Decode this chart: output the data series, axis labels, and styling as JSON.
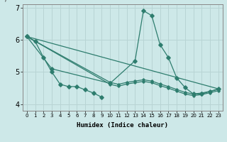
{
  "xlabel": "Humidex (Indice chaleur)",
  "bg_color": "#cde8e8",
  "line_color": "#2e7d6e",
  "grid_color": "#b8d4d4",
  "xlim": [
    -0.5,
    23.5
  ],
  "ylim": [
    3.8,
    7.1
  ],
  "yticks": [
    4,
    5,
    6,
    7
  ],
  "xtick_labels": [
    "0",
    "1",
    "2",
    "3",
    "4",
    "5",
    "6",
    "7",
    "8",
    "9",
    "10",
    "11",
    "12",
    "13",
    "14",
    "15",
    "16",
    "17",
    "18",
    "19",
    "20",
    "21",
    "22",
    "23"
  ],
  "line_jagged": {
    "x": [
      0,
      1,
      2,
      3,
      4,
      5,
      6,
      7,
      8,
      9
    ],
    "y": [
      6.1,
      5.95,
      5.45,
      5.0,
      4.62,
      4.55,
      4.55,
      4.45,
      4.35,
      4.22
    ]
  },
  "line_peak": {
    "x": [
      0,
      3,
      10,
      13,
      14,
      15,
      16,
      17,
      18,
      19,
      20,
      21,
      22,
      23
    ],
    "y": [
      6.1,
      5.1,
      4.65,
      5.35,
      6.9,
      6.75,
      5.85,
      5.45,
      4.82,
      4.52,
      4.32,
      4.32,
      4.4,
      4.48
    ]
  },
  "line_straight1": {
    "x": [
      0,
      23
    ],
    "y": [
      6.1,
      4.48
    ]
  },
  "line_straight2": {
    "x": [
      0,
      10,
      11,
      12,
      13,
      14,
      15,
      16,
      17,
      18,
      19,
      20,
      21,
      22,
      23
    ],
    "y": [
      6.1,
      4.68,
      4.62,
      4.68,
      4.72,
      4.76,
      4.72,
      4.63,
      4.55,
      4.46,
      4.37,
      4.32,
      4.35,
      4.4,
      4.46
    ]
  },
  "line_straight3": {
    "x": [
      0,
      10,
      11,
      12,
      13,
      14,
      15,
      16,
      17,
      18,
      19,
      20,
      21,
      22,
      23
    ],
    "y": [
      6.1,
      4.62,
      4.56,
      4.63,
      4.67,
      4.71,
      4.67,
      4.58,
      4.5,
      4.41,
      4.32,
      4.27,
      4.3,
      4.36,
      4.42
    ]
  }
}
